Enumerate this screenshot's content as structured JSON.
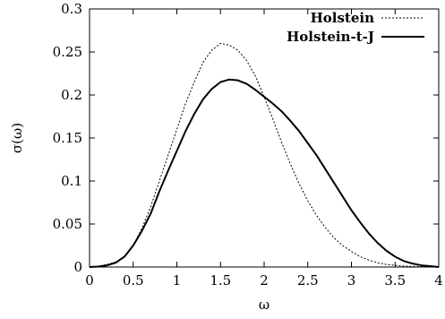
{
  "chart_data": {
    "type": "line",
    "title": "",
    "xlabel": "ω",
    "ylabel": "σ(ω)",
    "xlim": [
      0,
      4
    ],
    "ylim": [
      0,
      0.3
    ],
    "x_ticks": [
      "0",
      "0.5",
      "1",
      "1.5",
      "2",
      "2.5",
      "3",
      "3.5",
      "4"
    ],
    "y_ticks": [
      "0",
      "0.05",
      "0.1",
      "0.15",
      "0.2",
      "0.25",
      "0.3"
    ],
    "grid": false,
    "legend_position": "top-right",
    "series": [
      {
        "name": "Holstein",
        "style": "dotted",
        "color": "#000000",
        "points": [
          [
            0.0,
            0.0
          ],
          [
            0.1,
            0.001
          ],
          [
            0.2,
            0.003
          ],
          [
            0.3,
            0.006
          ],
          [
            0.4,
            0.012
          ],
          [
            0.5,
            0.025
          ],
          [
            0.6,
            0.045
          ],
          [
            0.7,
            0.07
          ],
          [
            0.8,
            0.1
          ],
          [
            0.9,
            0.13
          ],
          [
            1.0,
            0.16
          ],
          [
            1.1,
            0.19
          ],
          [
            1.2,
            0.215
          ],
          [
            1.3,
            0.238
          ],
          [
            1.4,
            0.252
          ],
          [
            1.5,
            0.26
          ],
          [
            1.6,
            0.258
          ],
          [
            1.7,
            0.252
          ],
          [
            1.8,
            0.24
          ],
          [
            1.9,
            0.222
          ],
          [
            2.0,
            0.198
          ],
          [
            2.1,
            0.172
          ],
          [
            2.2,
            0.145
          ],
          [
            2.3,
            0.12
          ],
          [
            2.4,
            0.097
          ],
          [
            2.5,
            0.077
          ],
          [
            2.6,
            0.06
          ],
          [
            2.7,
            0.046
          ],
          [
            2.8,
            0.034
          ],
          [
            2.9,
            0.025
          ],
          [
            3.0,
            0.018
          ],
          [
            3.1,
            0.012
          ],
          [
            3.2,
            0.008
          ],
          [
            3.3,
            0.005
          ],
          [
            3.4,
            0.003
          ],
          [
            3.5,
            0.002
          ],
          [
            3.6,
            0.001
          ],
          [
            3.8,
            0.0005
          ],
          [
            4.0,
            0.0
          ]
        ]
      },
      {
        "name": "Holstein-t-J",
        "style": "solid",
        "color": "#000000",
        "points": [
          [
            0.0,
            0.0
          ],
          [
            0.1,
            0.0005
          ],
          [
            0.2,
            0.002
          ],
          [
            0.3,
            0.005
          ],
          [
            0.4,
            0.012
          ],
          [
            0.5,
            0.025
          ],
          [
            0.6,
            0.042
          ],
          [
            0.7,
            0.062
          ],
          [
            0.8,
            0.088
          ],
          [
            0.9,
            0.112
          ],
          [
            1.0,
            0.135
          ],
          [
            1.1,
            0.158
          ],
          [
            1.2,
            0.178
          ],
          [
            1.3,
            0.195
          ],
          [
            1.4,
            0.207
          ],
          [
            1.5,
            0.215
          ],
          [
            1.6,
            0.218
          ],
          [
            1.7,
            0.217
          ],
          [
            1.8,
            0.213
          ],
          [
            1.9,
            0.206
          ],
          [
            2.0,
            0.198
          ],
          [
            2.1,
            0.19
          ],
          [
            2.2,
            0.181
          ],
          [
            2.3,
            0.17
          ],
          [
            2.4,
            0.158
          ],
          [
            2.5,
            0.144
          ],
          [
            2.6,
            0.13
          ],
          [
            2.7,
            0.114
          ],
          [
            2.8,
            0.098
          ],
          [
            2.9,
            0.082
          ],
          [
            3.0,
            0.066
          ],
          [
            3.1,
            0.052
          ],
          [
            3.2,
            0.039
          ],
          [
            3.3,
            0.028
          ],
          [
            3.4,
            0.019
          ],
          [
            3.5,
            0.012
          ],
          [
            3.6,
            0.007
          ],
          [
            3.7,
            0.004
          ],
          [
            3.8,
            0.002
          ],
          [
            3.9,
            0.001
          ],
          [
            4.0,
            0.0
          ]
        ]
      }
    ]
  }
}
